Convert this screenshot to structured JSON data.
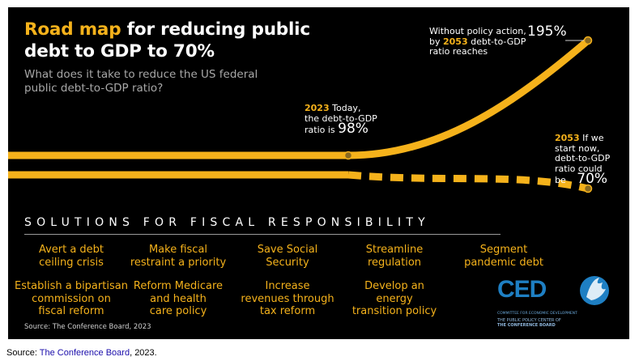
{
  "header": {
    "title_highlight": "Road map",
    "title_rest_1": "for reducing public",
    "title_line_2": "debt to GDP to 70%",
    "subtitle": "What does it take to reduce the US federal public debt-to-GDP ratio?"
  },
  "annotations": {
    "today": {
      "year": "2023",
      "text_1": "Today,",
      "text_2": "the debt-to-GDP",
      "text_3": "ratio is",
      "value": "98%"
    },
    "no_action": {
      "text_1": "Without policy action,",
      "text_2_prefix": "by",
      "year": "2053",
      "text_2_suffix": "debt-to-GDP",
      "text_3": "ratio reaches",
      "value": "195%"
    },
    "if_start": {
      "year": "2053",
      "text_1": "If we",
      "text_2": "start now,",
      "text_3": "debt-to-GDP",
      "text_4": "ratio could",
      "text_5": "be",
      "value": "70%"
    }
  },
  "chart_data": {
    "type": "line",
    "title": "Road map for reducing public debt to GDP to 70%",
    "series": [
      {
        "points": [
          [
            "2023",
            98
          ],
          [
            "2053",
            195
          ]
        ],
        "style": "solid"
      },
      {
        "points": [
          [
            "2023",
            98
          ],
          [
            "2053",
            70
          ]
        ],
        "style": "dashed"
      }
    ]
  },
  "solutions": {
    "heading": "SOLUTIONS FOR FISCAL RESPONSIBILITY",
    "items": [
      [
        "Avert a debt",
        "ceiling crisis"
      ],
      [
        "Make fiscal",
        "restraint a priority"
      ],
      [
        "Save Social",
        "Security"
      ],
      [
        "Streamline",
        "regulation"
      ],
      [
        "Segment",
        "pandemic debt"
      ],
      [
        "Establish a bipartisan",
        "commission on",
        "fiscal reform"
      ],
      [
        "Reform Medicare",
        "and health",
        "care policy"
      ],
      [
        "Increase",
        "revenues through",
        "tax reform"
      ],
      [
        "Develop an",
        "energy",
        "transition policy"
      ]
    ]
  },
  "logo": {
    "name": "CED",
    "line_1": "COMMITTEE FOR ECONOMIC DEVELOPMENT",
    "line_2": "THE PUBLIC POLICY CENTER OF",
    "line_3": "THE CONFERENCE BOARD"
  },
  "source_inner": "Source: The Conference Board, 2023",
  "source_outer": {
    "prefix": "Source:",
    "link": "The Conference Board",
    "suffix": ", 2023."
  },
  "colors": {
    "accent": "#f5b21b",
    "background": "#000000",
    "logo_blue": "#1e7fc3"
  }
}
